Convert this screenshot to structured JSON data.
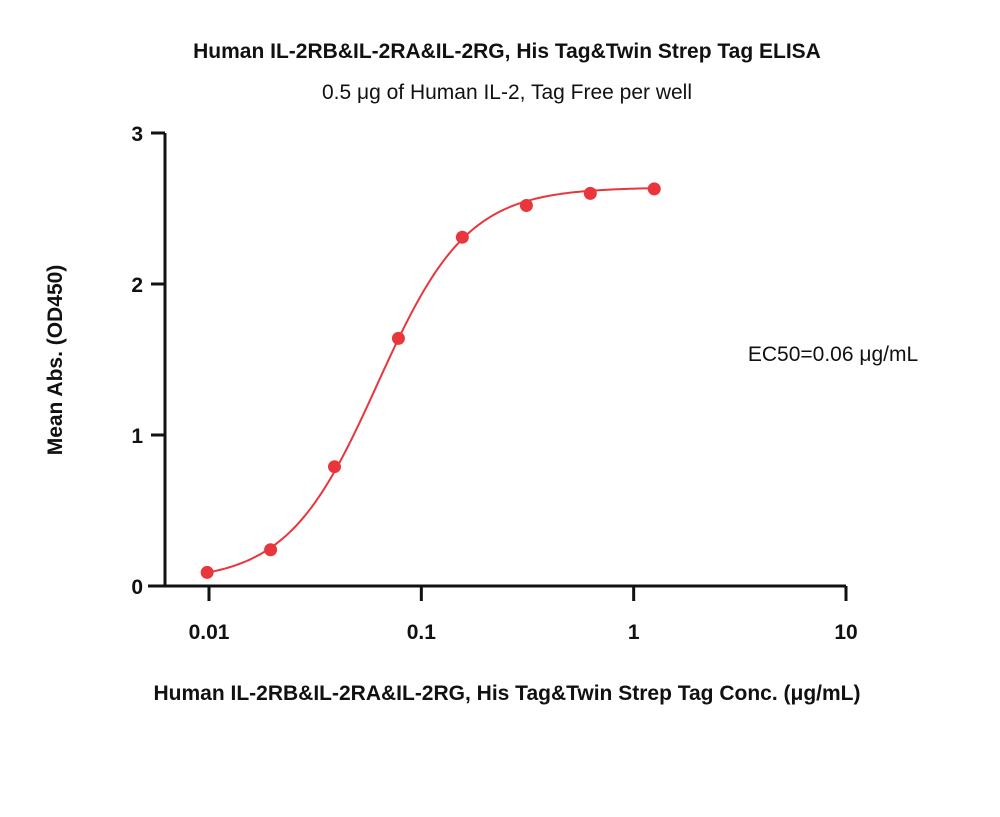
{
  "chart_data": {
    "type": "scatter",
    "title": "Human IL-2RB&IL-2RA&IL-2RG, His Tag&Twin Strep Tag ELISA",
    "subtitle": "0.5 μg of Human IL-2, Tag Free per well",
    "xlabel": "Human IL-2RB&IL-2RA&IL-2RG, His Tag&Twin Strep Tag Conc. (μg/mL)",
    "ylabel": "Mean Abs. (OD450)",
    "x_scale": "log",
    "xlim": [
      0.006,
      10
    ],
    "ylim": [
      0,
      3
    ],
    "x_ticks": [
      0.01,
      0.1,
      1,
      10
    ],
    "x_tick_labels": [
      "0.01",
      "0.1",
      "1",
      "10"
    ],
    "y_ticks": [
      0,
      1,
      2,
      3
    ],
    "y_tick_labels": [
      "0",
      "1",
      "2",
      "3"
    ],
    "grid": false,
    "series": [
      {
        "color": "#e8363c",
        "x": [
          0.0098,
          0.0195,
          0.039,
          0.078,
          0.156,
          0.3125,
          0.625,
          1.25
        ],
        "y": [
          0.09,
          0.24,
          0.79,
          1.64,
          2.31,
          2.52,
          2.6,
          2.63
        ],
        "fit": "4PL"
      }
    ],
    "annotation": "EC50=0.06 μg/mL"
  }
}
